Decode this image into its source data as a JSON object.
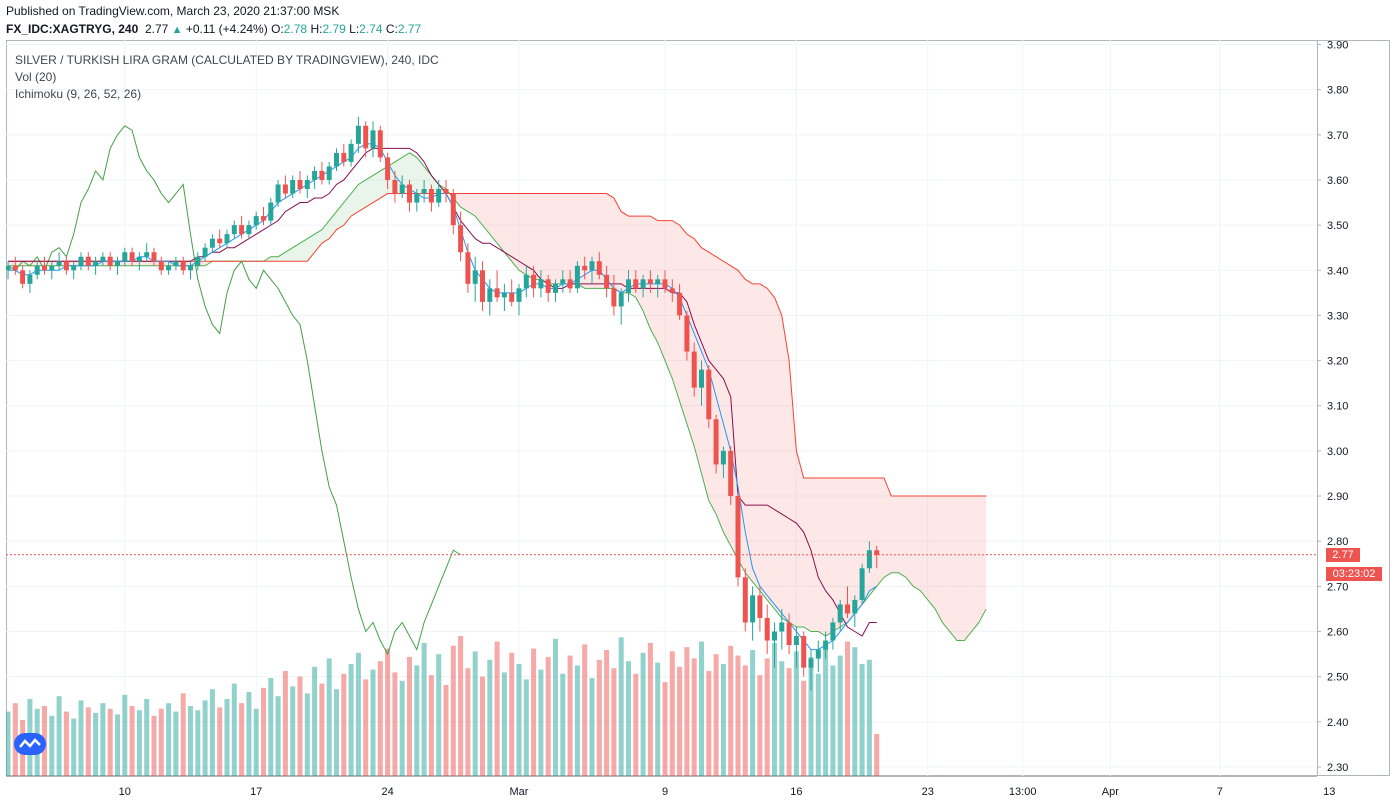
{
  "header": {
    "published": "Published on TradingView.com, March 23, 2020 21:37:00 MSK",
    "symbol": "FX_IDC:XAGTRYG, 240",
    "last": "2.77",
    "change_arrow": "▲",
    "change": "+0.11 (+4.24%)",
    "o_label": "O:",
    "o_value": "2.78",
    "h_label": "H:",
    "h_value": "2.79",
    "l_label": "L:",
    "l_value": "2.74",
    "c_label": "C:",
    "c_value": "2.77"
  },
  "legend": {
    "title": "SILVER / TURKISH LIRA GRAM (CALCULATED BY TRADINGVIEW), 240, IDC",
    "volume": "Vol (20)",
    "ichimoku": "Ichimoku (9, 26, 52, 26)"
  },
  "price_tags": {
    "last_price": "2.77",
    "countdown": "03:23:02"
  },
  "colors": {
    "up": "#26a69a",
    "down": "#ef5350",
    "tenkan": "#2196f3",
    "kijun": "#880e4f",
    "chikou": "#43a047",
    "span_a": "#4caf50",
    "span_b": "#f44336",
    "axis": "#b2b5be"
  },
  "logo": "tradingview-logo",
  "chart_data": {
    "type": "candlestick",
    "symbol": "FX_IDC:XAGTRYG",
    "interval": "240",
    "y_axis": {
      "side": "right",
      "ticks": [
        "3.90",
        "3.80",
        "3.70",
        "3.60",
        "3.50",
        "3.40",
        "3.30",
        "3.20",
        "3.10",
        "3.00",
        "2.90",
        "2.80",
        "2.70",
        "2.60",
        "2.50",
        "2.40",
        "2.30"
      ],
      "range": [
        2.28,
        3.91
      ]
    },
    "x_axis": {
      "ticks": [
        {
          "label": "10",
          "idx": 16
        },
        {
          "label": "17",
          "idx": 34
        },
        {
          "label": "24",
          "idx": 52
        },
        {
          "label": "Mar",
          "idx": 70
        },
        {
          "label": "9",
          "idx": 90
        },
        {
          "label": "16",
          "idx": 108
        },
        {
          "label": "23",
          "idx": 126
        },
        {
          "label": "13:00",
          "idx": 139
        },
        {
          "label": "Apr",
          "idx": 151
        },
        {
          "label": "7",
          "idx": 166
        },
        {
          "label": "13",
          "idx": 181
        }
      ]
    },
    "last_price_line": 2.77,
    "candles": [
      [
        3.4,
        3.42,
        3.38,
        3.41
      ],
      [
        3.41,
        3.43,
        3.39,
        3.4
      ],
      [
        3.4,
        3.41,
        3.36,
        3.37
      ],
      [
        3.37,
        3.4,
        3.35,
        3.39
      ],
      [
        3.39,
        3.42,
        3.38,
        3.41
      ],
      [
        3.41,
        3.43,
        3.39,
        3.4
      ],
      [
        3.4,
        3.42,
        3.38,
        3.41
      ],
      [
        3.41,
        3.44,
        3.4,
        3.42
      ],
      [
        3.42,
        3.43,
        3.39,
        3.4
      ],
      [
        3.4,
        3.42,
        3.38,
        3.41
      ],
      [
        3.41,
        3.44,
        3.4,
        3.43
      ],
      [
        3.43,
        3.44,
        3.4,
        3.41
      ],
      [
        3.41,
        3.43,
        3.39,
        3.42
      ],
      [
        3.42,
        3.44,
        3.41,
        3.43
      ],
      [
        3.43,
        3.44,
        3.4,
        3.41
      ],
      [
        3.41,
        3.43,
        3.39,
        3.42
      ],
      [
        3.42,
        3.45,
        3.41,
        3.44
      ],
      [
        3.44,
        3.45,
        3.41,
        3.42
      ],
      [
        3.42,
        3.44,
        3.4,
        3.43
      ],
      [
        3.43,
        3.46,
        3.42,
        3.44
      ],
      [
        3.44,
        3.45,
        3.41,
        3.42
      ],
      [
        3.42,
        3.43,
        3.39,
        3.4
      ],
      [
        3.4,
        3.42,
        3.39,
        3.41
      ],
      [
        3.41,
        3.43,
        3.4,
        3.42
      ],
      [
        3.42,
        3.43,
        3.39,
        3.4
      ],
      [
        3.4,
        3.42,
        3.38,
        3.41
      ],
      [
        3.41,
        3.44,
        3.4,
        3.43
      ],
      [
        3.43,
        3.46,
        3.42,
        3.45
      ],
      [
        3.45,
        3.48,
        3.44,
        3.47
      ],
      [
        3.47,
        3.49,
        3.45,
        3.46
      ],
      [
        3.46,
        3.49,
        3.45,
        3.48
      ],
      [
        3.48,
        3.51,
        3.47,
        3.5
      ],
      [
        3.5,
        3.52,
        3.47,
        3.48
      ],
      [
        3.48,
        3.51,
        3.47,
        3.5
      ],
      [
        3.5,
        3.53,
        3.49,
        3.52
      ],
      [
        3.52,
        3.54,
        3.5,
        3.51
      ],
      [
        3.51,
        3.56,
        3.5,
        3.55
      ],
      [
        3.55,
        3.6,
        3.54,
        3.59
      ],
      [
        3.59,
        3.61,
        3.56,
        3.57
      ],
      [
        3.57,
        3.61,
        3.56,
        3.6
      ],
      [
        3.6,
        3.62,
        3.57,
        3.58
      ],
      [
        3.58,
        3.61,
        3.56,
        3.6
      ],
      [
        3.6,
        3.63,
        3.58,
        3.62
      ],
      [
        3.62,
        3.64,
        3.59,
        3.6
      ],
      [
        3.6,
        3.64,
        3.59,
        3.63
      ],
      [
        3.63,
        3.67,
        3.62,
        3.66
      ],
      [
        3.66,
        3.68,
        3.63,
        3.64
      ],
      [
        3.64,
        3.69,
        3.63,
        3.68
      ],
      [
        3.68,
        3.74,
        3.66,
        3.72
      ],
      [
        3.72,
        3.73,
        3.65,
        3.67
      ],
      [
        3.67,
        3.73,
        3.65,
        3.71
      ],
      [
        3.71,
        3.72,
        3.64,
        3.65
      ],
      [
        3.65,
        3.66,
        3.58,
        3.6
      ],
      [
        3.6,
        3.62,
        3.55,
        3.57
      ],
      [
        3.57,
        3.61,
        3.56,
        3.59
      ],
      [
        3.59,
        3.6,
        3.53,
        3.55
      ],
      [
        3.55,
        3.58,
        3.53,
        3.57
      ],
      [
        3.57,
        3.6,
        3.55,
        3.58
      ],
      [
        3.58,
        3.59,
        3.53,
        3.55
      ],
      [
        3.55,
        3.6,
        3.54,
        3.58
      ],
      [
        3.58,
        3.6,
        3.55,
        3.57
      ],
      [
        3.57,
        3.58,
        3.48,
        3.5
      ],
      [
        3.5,
        3.53,
        3.42,
        3.44
      ],
      [
        3.44,
        3.46,
        3.35,
        3.37
      ],
      [
        3.37,
        3.43,
        3.33,
        3.4
      ],
      [
        3.4,
        3.42,
        3.31,
        3.33
      ],
      [
        3.33,
        3.38,
        3.3,
        3.36
      ],
      [
        3.36,
        3.4,
        3.33,
        3.34
      ],
      [
        3.34,
        3.37,
        3.31,
        3.35
      ],
      [
        3.35,
        3.38,
        3.32,
        3.33
      ],
      [
        3.33,
        3.37,
        3.3,
        3.36
      ],
      [
        3.36,
        3.41,
        3.34,
        3.39
      ],
      [
        3.39,
        3.41,
        3.34,
        3.36
      ],
      [
        3.36,
        3.4,
        3.34,
        3.38
      ],
      [
        3.38,
        3.39,
        3.33,
        3.35
      ],
      [
        3.35,
        3.38,
        3.33,
        3.37
      ],
      [
        3.37,
        3.4,
        3.35,
        3.38
      ],
      [
        3.38,
        3.4,
        3.35,
        3.36
      ],
      [
        3.36,
        3.42,
        3.35,
        3.41
      ],
      [
        3.41,
        3.43,
        3.38,
        3.4
      ],
      [
        3.4,
        3.43,
        3.37,
        3.42
      ],
      [
        3.42,
        3.44,
        3.38,
        3.39
      ],
      [
        3.39,
        3.41,
        3.34,
        3.36
      ],
      [
        3.36,
        3.39,
        3.3,
        3.32
      ],
      [
        3.32,
        3.36,
        3.28,
        3.35
      ],
      [
        3.35,
        3.4,
        3.33,
        3.38
      ],
      [
        3.38,
        3.4,
        3.35,
        3.36
      ],
      [
        3.36,
        3.39,
        3.34,
        3.38
      ],
      [
        3.38,
        3.4,
        3.35,
        3.37
      ],
      [
        3.37,
        3.39,
        3.34,
        3.38
      ],
      [
        3.38,
        3.4,
        3.35,
        3.36
      ],
      [
        3.36,
        3.38,
        3.33,
        3.35
      ],
      [
        3.35,
        3.37,
        3.29,
        3.3
      ],
      [
        3.3,
        3.31,
        3.2,
        3.22
      ],
      [
        3.22,
        3.24,
        3.12,
        3.14
      ],
      [
        3.14,
        3.2,
        3.1,
        3.18
      ],
      [
        3.18,
        3.19,
        3.05,
        3.07
      ],
      [
        3.07,
        3.08,
        2.95,
        2.97
      ],
      [
        2.97,
        3.01,
        2.94,
        3.0
      ],
      [
        3.0,
        3.01,
        2.88,
        2.9
      ],
      [
        2.9,
        2.91,
        2.7,
        2.72
      ],
      [
        2.72,
        2.74,
        2.6,
        2.62
      ],
      [
        2.62,
        2.7,
        2.58,
        2.68
      ],
      [
        2.68,
        2.7,
        2.6,
        2.63
      ],
      [
        2.63,
        2.66,
        2.55,
        2.58
      ],
      [
        2.58,
        2.62,
        2.52,
        2.6
      ],
      [
        2.6,
        2.65,
        2.56,
        2.62
      ],
      [
        2.62,
        2.64,
        2.55,
        2.57
      ],
      [
        2.57,
        2.61,
        2.52,
        2.59
      ],
      [
        2.59,
        2.6,
        2.5,
        2.52
      ],
      [
        2.52,
        2.56,
        2.47,
        2.54
      ],
      [
        2.54,
        2.58,
        2.51,
        2.56
      ],
      [
        2.56,
        2.6,
        2.54,
        2.58
      ],
      [
        2.58,
        2.63,
        2.56,
        2.62
      ],
      [
        2.62,
        2.67,
        2.6,
        2.66
      ],
      [
        2.66,
        2.7,
        2.63,
        2.64
      ],
      [
        2.64,
        2.68,
        2.61,
        2.67
      ],
      [
        2.67,
        2.75,
        2.66,
        2.74
      ],
      [
        2.74,
        2.8,
        2.73,
        2.78
      ],
      [
        2.78,
        2.79,
        2.74,
        2.77
      ]
    ],
    "volume": [
      0.46,
      0.52,
      0.4,
      0.55,
      0.48,
      0.5,
      0.43,
      0.57,
      0.46,
      0.41,
      0.54,
      0.49,
      0.45,
      0.52,
      0.48,
      0.44,
      0.58,
      0.5,
      0.47,
      0.55,
      0.43,
      0.48,
      0.52,
      0.46,
      0.59,
      0.5,
      0.47,
      0.54,
      0.62,
      0.49,
      0.55,
      0.66,
      0.52,
      0.6,
      0.48,
      0.63,
      0.7,
      0.57,
      0.75,
      0.64,
      0.71,
      0.59,
      0.78,
      0.66,
      0.84,
      0.62,
      0.73,
      0.8,
      0.88,
      0.69,
      0.76,
      0.82,
      0.91,
      0.74,
      0.68,
      0.85,
      0.79,
      0.95,
      0.72,
      0.87,
      0.65,
      0.93,
      1.0,
      0.77,
      0.89,
      0.71,
      0.83,
      0.96,
      0.74,
      0.88,
      0.8,
      0.69,
      0.91,
      0.76,
      0.85,
      0.98,
      0.73,
      0.86,
      0.79,
      0.94,
      0.7,
      0.83,
      0.9,
      0.77,
      0.99,
      0.82,
      0.73,
      0.88,
      0.95,
      0.81,
      0.67,
      0.89,
      0.78,
      0.92,
      0.84,
      0.96,
      0.75,
      0.87,
      0.8,
      0.93,
      0.86,
      0.79,
      0.9,
      0.72,
      0.84,
      0.95,
      0.82,
      0.77,
      0.89,
      0.68,
      0.85,
      0.73,
      0.91,
      0.79,
      0.86,
      0.96,
      0.92,
      0.8,
      0.83,
      0.3
    ],
    "tenkan": [
      3.4,
      3.4,
      3.39,
      3.39,
      3.4,
      3.4,
      3.4,
      3.4,
      3.41,
      3.41,
      3.41,
      3.41,
      3.41,
      3.42,
      3.42,
      3.42,
      3.42,
      3.42,
      3.43,
      3.43,
      3.42,
      3.42,
      3.42,
      3.41,
      3.41,
      3.41,
      3.42,
      3.43,
      3.44,
      3.45,
      3.46,
      3.47,
      3.48,
      3.49,
      3.5,
      3.51,
      3.53,
      3.55,
      3.56,
      3.57,
      3.58,
      3.59,
      3.6,
      3.61,
      3.62,
      3.63,
      3.64,
      3.65,
      3.67,
      3.68,
      3.68,
      3.67,
      3.64,
      3.61,
      3.59,
      3.58,
      3.57,
      3.56,
      3.56,
      3.57,
      3.57,
      3.54,
      3.49,
      3.44,
      3.4,
      3.38,
      3.36,
      3.35,
      3.35,
      3.35,
      3.35,
      3.36,
      3.37,
      3.37,
      3.36,
      3.36,
      3.37,
      3.37,
      3.38,
      3.39,
      3.4,
      3.4,
      3.38,
      3.36,
      3.35,
      3.36,
      3.37,
      3.37,
      3.37,
      3.37,
      3.37,
      3.36,
      3.34,
      3.3,
      3.26,
      3.22,
      3.18,
      3.12,
      3.06,
      3.0,
      2.92,
      2.82,
      2.74,
      2.7,
      2.68,
      2.66,
      2.64,
      2.62,
      2.6,
      2.58,
      2.56,
      2.56,
      2.57,
      2.58,
      2.6,
      2.62,
      2.64,
      2.66,
      2.69,
      2.7
    ],
    "kijun": [
      3.42,
      3.42,
      3.42,
      3.42,
      3.42,
      3.42,
      3.42,
      3.42,
      3.42,
      3.42,
      3.42,
      3.42,
      3.42,
      3.42,
      3.42,
      3.42,
      3.42,
      3.42,
      3.42,
      3.42,
      3.42,
      3.42,
      3.42,
      3.42,
      3.42,
      3.42,
      3.43,
      3.43,
      3.44,
      3.44,
      3.45,
      3.45,
      3.46,
      3.47,
      3.48,
      3.49,
      3.5,
      3.51,
      3.53,
      3.54,
      3.55,
      3.55,
      3.56,
      3.56,
      3.57,
      3.59,
      3.6,
      3.62,
      3.64,
      3.66,
      3.67,
      3.67,
      3.67,
      3.67,
      3.67,
      3.67,
      3.66,
      3.64,
      3.61,
      3.59,
      3.57,
      3.54,
      3.51,
      3.49,
      3.47,
      3.46,
      3.46,
      3.45,
      3.44,
      3.43,
      3.42,
      3.41,
      3.4,
      3.38,
      3.37,
      3.36,
      3.36,
      3.37,
      3.37,
      3.37,
      3.37,
      3.37,
      3.37,
      3.37,
      3.37,
      3.36,
      3.36,
      3.36,
      3.36,
      3.36,
      3.36,
      3.35,
      3.35,
      3.33,
      3.28,
      3.24,
      3.2,
      3.18,
      3.16,
      3.12,
      2.9,
      2.88,
      2.88,
      2.88,
      2.88,
      2.87,
      2.86,
      2.85,
      2.84,
      2.82,
      2.78,
      2.72,
      2.69,
      2.67,
      2.64,
      2.61,
      2.6,
      2.59,
      2.62,
      2.62
    ],
    "chikou": [
      3.41,
      3.4,
      3.42,
      3.41,
      3.43,
      3.4,
      3.44,
      3.45,
      3.43,
      3.48,
      3.55,
      3.58,
      3.62,
      3.6,
      3.67,
      3.7,
      3.72,
      3.71,
      3.65,
      3.62,
      3.6,
      3.57,
      3.55,
      3.57,
      3.59,
      3.48,
      3.38,
      3.32,
      3.28,
      3.26,
      3.35,
      3.4,
      3.42,
      3.38,
      3.36,
      3.4,
      3.38,
      3.36,
      3.33,
      3.3,
      3.28,
      3.2,
      3.1,
      3.0,
      2.92,
      2.88,
      2.8,
      2.72,
      2.65,
      2.6,
      2.62,
      2.58,
      2.55,
      2.6,
      2.62,
      2.59,
      2.56,
      2.62,
      2.66,
      2.7,
      2.74,
      2.78,
      2.77
    ],
    "span_a": [
      3.41,
      3.41,
      3.41,
      3.41,
      3.41,
      3.41,
      3.41,
      3.41,
      3.41,
      3.41,
      3.41,
      3.41,
      3.41,
      3.41,
      3.41,
      3.41,
      3.41,
      3.41,
      3.41,
      3.41,
      3.41,
      3.41,
      3.41,
      3.41,
      3.41,
      3.41,
      3.41,
      3.41,
      3.42,
      3.42,
      3.42,
      3.42,
      3.42,
      3.42,
      3.42,
      3.42,
      3.43,
      3.43,
      3.44,
      3.45,
      3.46,
      3.47,
      3.48,
      3.49,
      3.51,
      3.53,
      3.55,
      3.57,
      3.59,
      3.6,
      3.61,
      3.62,
      3.63,
      3.64,
      3.65,
      3.66,
      3.65,
      3.63,
      3.61,
      3.59,
      3.58,
      3.56,
      3.54,
      3.53,
      3.52,
      3.5,
      3.48,
      3.46,
      3.44,
      3.42,
      3.4,
      3.39,
      3.38,
      3.38,
      3.37,
      3.37,
      3.37,
      3.37,
      3.37,
      3.36,
      3.36,
      3.36,
      3.36,
      3.36,
      3.35,
      3.35,
      3.34,
      3.31,
      3.27,
      3.24,
      3.2,
      3.16,
      3.11,
      3.06,
      3.01,
      2.95,
      2.89,
      2.86,
      2.82,
      2.79,
      2.76,
      2.73,
      2.71,
      2.69,
      2.67,
      2.65,
      2.63,
      2.62,
      2.61,
      2.61,
      2.6,
      2.6,
      2.59,
      2.6,
      2.61,
      2.62,
      2.64,
      2.66,
      2.68,
      2.7,
      2.72,
      2.73,
      2.73,
      2.72,
      2.7,
      2.69,
      2.67,
      2.65,
      2.62,
      2.6,
      2.58,
      2.58,
      2.6,
      2.62,
      2.65
    ],
    "span_b": [
      3.42,
      3.42,
      3.42,
      3.42,
      3.42,
      3.42,
      3.42,
      3.42,
      3.42,
      3.42,
      3.42,
      3.42,
      3.42,
      3.42,
      3.42,
      3.42,
      3.42,
      3.42,
      3.42,
      3.42,
      3.42,
      3.42,
      3.42,
      3.42,
      3.42,
      3.42,
      3.42,
      3.42,
      3.42,
      3.42,
      3.42,
      3.42,
      3.42,
      3.42,
      3.42,
      3.42,
      3.42,
      3.42,
      3.42,
      3.42,
      3.42,
      3.42,
      3.44,
      3.46,
      3.47,
      3.49,
      3.5,
      3.52,
      3.53,
      3.54,
      3.55,
      3.56,
      3.57,
      3.57,
      3.57,
      3.57,
      3.57,
      3.57,
      3.57,
      3.57,
      3.57,
      3.57,
      3.57,
      3.57,
      3.57,
      3.57,
      3.57,
      3.57,
      3.57,
      3.57,
      3.57,
      3.57,
      3.57,
      3.57,
      3.57,
      3.57,
      3.57,
      3.57,
      3.57,
      3.57,
      3.57,
      3.57,
      3.57,
      3.56,
      3.53,
      3.52,
      3.52,
      3.52,
      3.52,
      3.51,
      3.51,
      3.51,
      3.5,
      3.48,
      3.47,
      3.45,
      3.44,
      3.43,
      3.42,
      3.41,
      3.4,
      3.38,
      3.37,
      3.37,
      3.36,
      3.34,
      3.3,
      3.2,
      3.0,
      2.94,
      2.94,
      2.94,
      2.94,
      2.94,
      2.94,
      2.94,
      2.94,
      2.94,
      2.94,
      2.94,
      2.94,
      2.9,
      2.9,
      2.9,
      2.9,
      2.9,
      2.9,
      2.9,
      2.9,
      2.9,
      2.9,
      2.9,
      2.9,
      2.9,
      2.9
    ],
    "span_offset": 26,
    "chikou_offset": -26
  }
}
